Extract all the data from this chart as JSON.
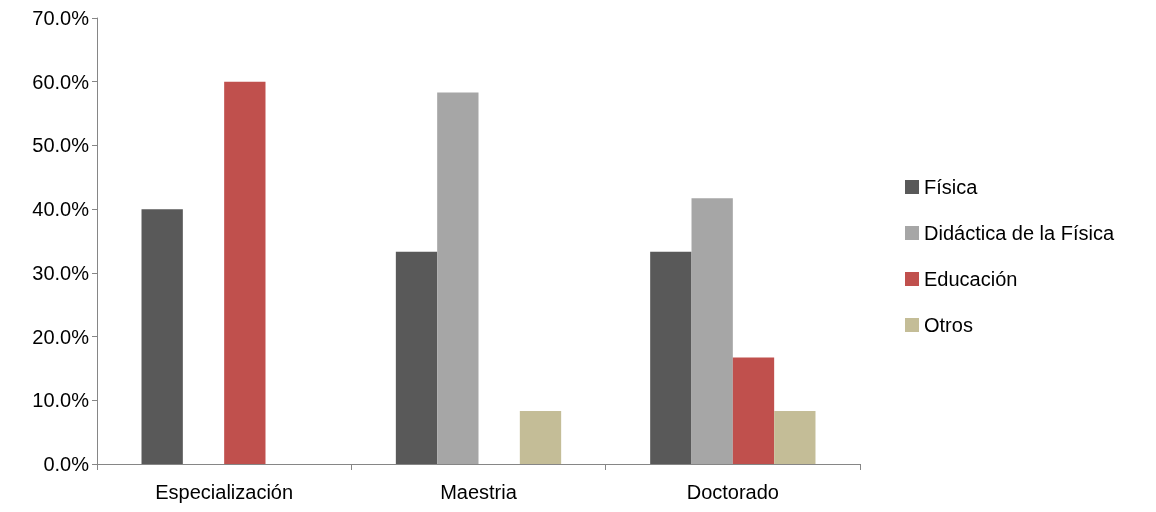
{
  "chart_data": {
    "type": "bar",
    "categories": [
      "Especialización",
      "Maestria",
      "Doctorado"
    ],
    "series": [
      {
        "name": "Física",
        "color": "#595959",
        "values": [
          40,
          33.3,
          33.3
        ]
      },
      {
        "name": "Didáctica de la Física",
        "color": "#a6a6a6",
        "values": [
          0,
          58.3,
          41.7
        ]
      },
      {
        "name": "Educación",
        "color": "#c0504d",
        "values": [
          60,
          0,
          16.7
        ]
      },
      {
        "name": "Otros",
        "color": "#c4bd97",
        "values": [
          0,
          8.3,
          8.3
        ]
      }
    ],
    "ylim": [
      0,
      70
    ],
    "yticks": [
      {
        "value": 0,
        "label": "0.0%"
      },
      {
        "value": 10,
        "label": "10.0%"
      },
      {
        "value": 20,
        "label": "20.0%"
      },
      {
        "value": 30,
        "label": "30.0%"
      },
      {
        "value": 40,
        "label": "40.0%"
      },
      {
        "value": 50,
        "label": "50.0%"
      },
      {
        "value": 60,
        "label": "60.0%"
      },
      {
        "value": 70,
        "label": "70.0%"
      }
    ],
    "grid": false,
    "legend": "right"
  }
}
